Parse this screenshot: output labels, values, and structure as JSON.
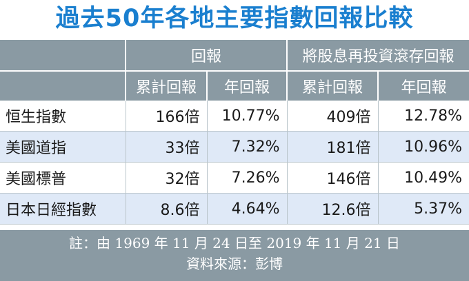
{
  "title": "過去50年各地主要指數回報比較",
  "groups": {
    "return": "回報",
    "reinvest": "將股息再投資滾存回報"
  },
  "subheaders": {
    "cum1": "累計回報",
    "ann1": "年回報",
    "cum2": "累計回報",
    "ann2": "年回報"
  },
  "rows": [
    {
      "name": "恒生指數",
      "cum": "166倍",
      "ann": "10.77%",
      "cum_re": "409倍",
      "ann_re": "12.78%"
    },
    {
      "name": "美國道指",
      "cum": "33倍",
      "ann": "7.32%",
      "cum_re": "181倍",
      "ann_re": "10.96%"
    },
    {
      "name": "美國標普",
      "cum": "32倍",
      "ann": "7.26%",
      "cum_re": "146倍",
      "ann_re": "10.49%"
    },
    {
      "name": "日本日經指數",
      "cum": "8.6倍",
      "ann": "4.64%",
      "cum_re": "12.6倍",
      "ann_re": "5.37%"
    }
  ],
  "note": "註：由 1969 年 11 月 24 日至 2019 年 11 月 21 日",
  "source": "資料來源：彭博",
  "colors": {
    "title": "#1a7fcf",
    "header_bg": "#8a9aa3",
    "row_tint": "#dfe9f7"
  }
}
